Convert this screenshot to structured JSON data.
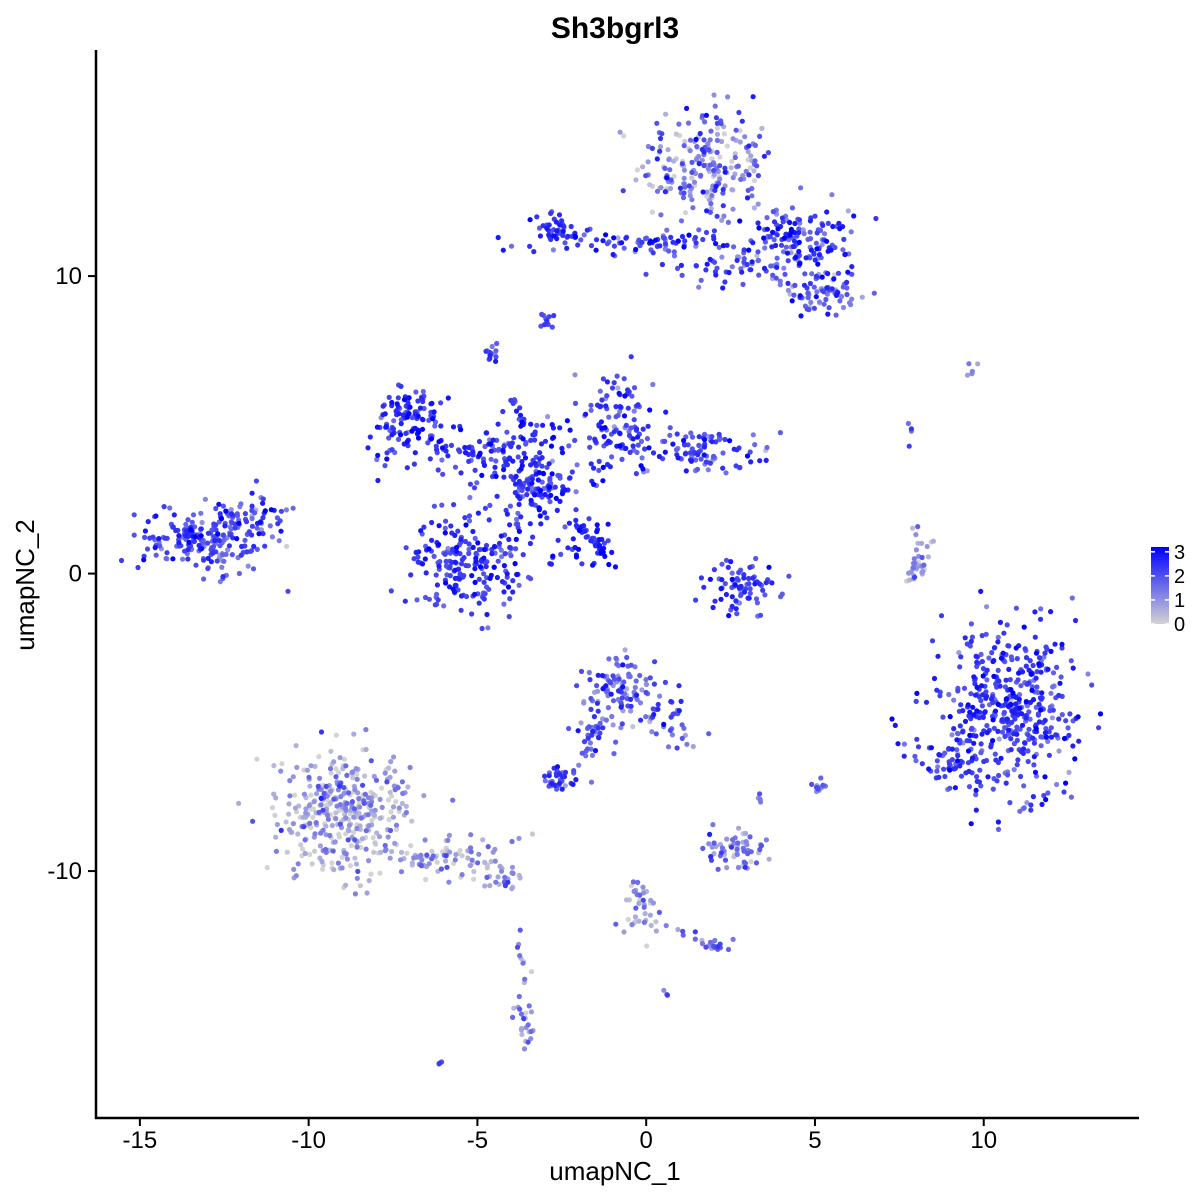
{
  "chart_data": {
    "type": "scatter",
    "title": "Sh3bgrl3",
    "xlabel": "umapNC_1",
    "ylabel": "umapNC_2",
    "xlim": [
      -16.3,
      14.6
    ],
    "ylim": [
      -18.3,
      17.6
    ],
    "x_ticks": [
      -15,
      -10,
      -5,
      0,
      5,
      10
    ],
    "y_ticks": [
      -10,
      0,
      10
    ],
    "x_tick_labels": [
      "-15",
      "-10",
      "-5",
      "0",
      "5",
      "10"
    ],
    "y_tick_labels": [
      "-10",
      "0",
      "10"
    ],
    "grid": false,
    "legend": {
      "position": "right",
      "type": "colorbar",
      "labels": [
        "3",
        "2",
        "1",
        "0"
      ],
      "values": [
        3,
        2,
        1,
        0
      ],
      "range": [
        0,
        3.2
      ]
    },
    "colors": {
      "low": "#d3d3d3",
      "high": "#0000ff"
    },
    "clusters": [
      {
        "cx": 1.8,
        "cy": 13.7,
        "sx": 1.0,
        "sy": 1.0,
        "n": 240,
        "expr": 1.2,
        "noise": 0.9
      },
      {
        "cx": 4.4,
        "cy": 11.2,
        "sx": 0.8,
        "sy": 0.55,
        "n": 150,
        "expr": 2.1,
        "noise": 0.7
      },
      {
        "cx": 5.3,
        "cy": 9.5,
        "sx": 0.5,
        "sy": 0.4,
        "n": 70,
        "expr": 1.8,
        "noise": 0.7
      },
      {
        "cx": -2.6,
        "cy": 11.5,
        "sx": 0.35,
        "sy": 0.35,
        "n": 45,
        "expr": 2.3,
        "noise": 0.5
      },
      {
        "cx": 0.2,
        "cy": 11.1,
        "sx": 1.8,
        "sy": 0.2,
        "n": 80,
        "expr": 2.2,
        "noise": 0.6
      },
      {
        "cx": 2.2,
        "cy": 10.4,
        "sx": 0.9,
        "sy": 0.35,
        "n": 40,
        "expr": 2.0,
        "noise": 0.6
      },
      {
        "cx": -2.9,
        "cy": 8.6,
        "sx": 0.12,
        "sy": 0.18,
        "n": 12,
        "expr": 2.0,
        "noise": 0.4
      },
      {
        "cx": -4.6,
        "cy": 7.4,
        "sx": 0.15,
        "sy": 0.15,
        "n": 15,
        "expr": 1.9,
        "noise": 0.4
      },
      {
        "cx": -7.0,
        "cy": 5.2,
        "sx": 0.55,
        "sy": 0.55,
        "n": 100,
        "expr": 2.5,
        "noise": 0.5
      },
      {
        "cx": -5.3,
        "cy": 4.2,
        "sx": 1.3,
        "sy": 0.45,
        "n": 90,
        "expr": 2.5,
        "noise": 0.5
      },
      {
        "cx": -3.4,
        "cy": 3.2,
        "sx": 0.8,
        "sy": 1.0,
        "n": 160,
        "expr": 2.4,
        "noise": 0.5
      },
      {
        "cx": -5.3,
        "cy": 0.4,
        "sx": 0.85,
        "sy": 0.75,
        "n": 210,
        "expr": 2.3,
        "noise": 0.5
      },
      {
        "cx": -0.9,
        "cy": 5.2,
        "sx": 0.6,
        "sy": 0.8,
        "n": 110,
        "expr": 2.2,
        "noise": 0.6
      },
      {
        "cx": 1.6,
        "cy": 4.1,
        "sx": 1.0,
        "sy": 0.45,
        "n": 100,
        "expr": 2.0,
        "noise": 0.6
      },
      {
        "cx": -1.6,
        "cy": 1.1,
        "sx": 0.45,
        "sy": 0.45,
        "n": 30,
        "expr": 2.6,
        "noise": 0.4
      },
      {
        "cx": -13.0,
        "cy": 1.1,
        "sx": 1.0,
        "sy": 0.55,
        "n": 200,
        "expr": 2.0,
        "noise": 0.6
      },
      {
        "cx": -11.8,
        "cy": 1.9,
        "sx": 0.6,
        "sy": 0.4,
        "n": 50,
        "expr": 2.0,
        "noise": 0.6
      },
      {
        "cx": 2.9,
        "cy": -0.5,
        "sx": 0.65,
        "sy": 0.45,
        "n": 80,
        "expr": 2.2,
        "noise": 0.5
      },
      {
        "cx": 8.0,
        "cy": 0.3,
        "sx": 0.15,
        "sy": 0.5,
        "n": 25,
        "expr": 0.9,
        "noise": 0.7
      },
      {
        "cx": 10.8,
        "cy": -4.5,
        "sx": 1.0,
        "sy": 1.3,
        "n": 450,
        "expr": 2.2,
        "noise": 0.55
      },
      {
        "cx": 9.0,
        "cy": -6.4,
        "sx": 0.55,
        "sy": 0.5,
        "n": 60,
        "expr": 2.3,
        "noise": 0.5
      },
      {
        "cx": -0.6,
        "cy": -3.9,
        "sx": 0.6,
        "sy": 0.55,
        "n": 110,
        "expr": 1.5,
        "noise": 0.7
      },
      {
        "cx": 0.9,
        "cy": -5.0,
        "sx": 0.5,
        "sy": 0.45,
        "n": 30,
        "expr": 1.6,
        "noise": 0.6
      },
      {
        "cx": -1.5,
        "cy": -5.5,
        "sx": 0.3,
        "sy": 0.6,
        "n": 25,
        "expr": 1.8,
        "noise": 0.6
      },
      {
        "cx": -2.6,
        "cy": -6.9,
        "sx": 0.25,
        "sy": 0.2,
        "n": 35,
        "expr": 2.0,
        "noise": 0.6
      },
      {
        "cx": -9.0,
        "cy": -8.0,
        "sx": 1.0,
        "sy": 1.1,
        "n": 380,
        "expr": 0.6,
        "noise": 0.7
      },
      {
        "cx": -5.7,
        "cy": -9.5,
        "sx": 0.9,
        "sy": 0.4,
        "n": 80,
        "expr": 0.8,
        "noise": 0.7
      },
      {
        "cx": -4.3,
        "cy": -10.3,
        "sx": 0.3,
        "sy": 0.2,
        "n": 20,
        "expr": 1.2,
        "noise": 0.6
      },
      {
        "cx": 2.6,
        "cy": -9.3,
        "sx": 0.45,
        "sy": 0.35,
        "n": 60,
        "expr": 1.2,
        "noise": 0.7
      },
      {
        "cx": 5.1,
        "cy": -7.2,
        "sx": 0.1,
        "sy": 0.1,
        "n": 12,
        "expr": 1.6,
        "noise": 0.5
      },
      {
        "cx": -0.2,
        "cy": -11.4,
        "sx": 0.3,
        "sy": 0.55,
        "n": 25,
        "expr": 0.9,
        "noise": 0.7
      },
      {
        "cx": 2.1,
        "cy": -12.5,
        "sx": 0.25,
        "sy": 0.12,
        "n": 12,
        "expr": 1.5,
        "noise": 0.5
      },
      {
        "cx": -3.6,
        "cy": -14.9,
        "sx": 0.15,
        "sy": 0.55,
        "n": 25,
        "expr": 1.0,
        "noise": 0.7
      },
      {
        "cx": 7.8,
        "cy": 4.7,
        "sx": 0.08,
        "sy": 0.15,
        "n": 4,
        "expr": 1.6,
        "noise": 0.5
      },
      {
        "cx": 9.6,
        "cy": 6.8,
        "sx": 0.2,
        "sy": 0.12,
        "n": 5,
        "expr": 1.0,
        "noise": 0.6
      },
      {
        "cx": 3.3,
        "cy": -7.6,
        "sx": 0.08,
        "sy": 0.08,
        "n": 4,
        "expr": 1.2,
        "noise": 0.5
      },
      {
        "cx": -6.1,
        "cy": -16.4,
        "sx": 0.06,
        "sy": 0.06,
        "n": 3,
        "expr": 1.8,
        "noise": 0.4
      },
      {
        "cx": 0.6,
        "cy": -14.1,
        "sx": 0.05,
        "sy": 0.05,
        "n": 3,
        "expr": 1.8,
        "noise": 0.4
      }
    ],
    "streaks": [
      {
        "from": [
          -2.2,
          1.8
        ],
        "to": [
          -1.2,
          0.6
        ],
        "n": 30,
        "expr": 2.6,
        "noise": 0.4
      },
      {
        "from": [
          -4.0,
          6.0
        ],
        "to": [
          -3.4,
          4.5
        ],
        "n": 15,
        "expr": 2.4,
        "noise": 0.4
      },
      {
        "from": [
          -3.8,
          3.0
        ],
        "to": [
          -2.0,
          2.8
        ],
        "n": 20,
        "expr": 2.3,
        "noise": 0.5
      },
      {
        "from": [
          -1.5,
          -4.8
        ],
        "to": [
          -1.9,
          -6.3
        ],
        "n": 12,
        "expr": 1.9,
        "noise": 0.5
      },
      {
        "from": [
          -0.6,
          -10.0
        ],
        "to": [
          0.3,
          -12.0
        ],
        "n": 15,
        "expr": 0.8,
        "noise": 0.6
      },
      {
        "from": [
          0.3,
          -11.7
        ],
        "to": [
          2.3,
          -12.6
        ],
        "n": 12,
        "expr": 1.3,
        "noise": 0.6
      },
      {
        "from": [
          3.3,
          10.5
        ],
        "to": [
          4.9,
          8.9
        ],
        "n": 18,
        "expr": 2.0,
        "noise": 0.6
      },
      {
        "from": [
          7.6,
          -0.4
        ],
        "to": [
          8.4,
          1.2
        ],
        "n": 14,
        "expr": 0.9,
        "noise": 0.7
      },
      {
        "from": [
          -3.9,
          -11.6
        ],
        "to": [
          -3.5,
          -14.0
        ],
        "n": 8,
        "expr": 1.3,
        "noise": 0.5
      }
    ]
  }
}
